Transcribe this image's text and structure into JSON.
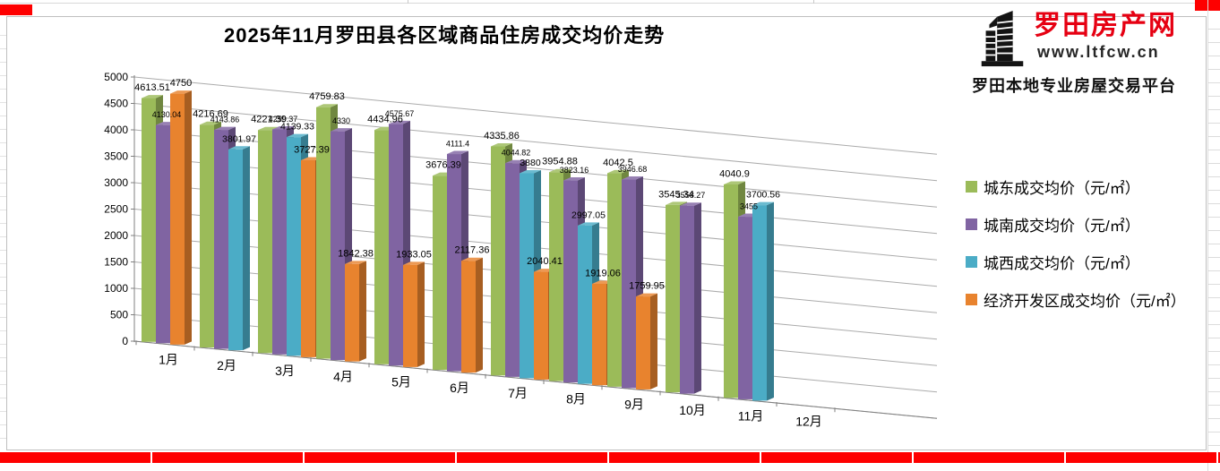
{
  "logo": {
    "site_name": "罗田房产网",
    "url": "www.ltfcw.cn",
    "tagline": "罗田本地专业房屋交易平台",
    "brand_color": "#e60012"
  },
  "sheet": {
    "accent_red": "#fe0000",
    "gridline_color": "#ababab",
    "axis_color": "#808080"
  },
  "chart_data": {
    "type": "bar",
    "subtype": "3d-clustered-column",
    "title": "2025年11月罗田县各区域商品住房成交均价走势",
    "categories": [
      "1月",
      "2月",
      "3月",
      "4月",
      "5月",
      "6月",
      "7月",
      "8月",
      "9月",
      "10月",
      "11月",
      "12月"
    ],
    "series": [
      {
        "name": "城东成交均价（元/㎡）",
        "color": "#9bbb59",
        "values": [
          4613.51,
          4216.69,
          4221.39,
          4759.83,
          4434.96,
          3676.39,
          4335.86,
          3954.88,
          4042.5,
          3545.34,
          4040.9,
          null
        ]
      },
      {
        "name": "城南成交均价（元/㎡）",
        "color": "#8064a2",
        "values": [
          4130.04,
          4143.86,
          4259.37,
          4330,
          4575.67,
          4111.4,
          4044.82,
          3823.16,
          3946.68,
          3558.27,
          3455,
          null
        ]
      },
      {
        "name": "城西成交均价（元/㎡）",
        "color": "#4bacc6",
        "values": [
          null,
          3801.97,
          4139.33,
          null,
          null,
          null,
          3880,
          2997.05,
          null,
          null,
          3700.56,
          null
        ]
      },
      {
        "name": "经济开发区成交均价（元/㎡）",
        "color": "#e8832e",
        "values": [
          4750,
          null,
          3727.39,
          1842.38,
          1933.05,
          2117.36,
          2040.41,
          1919.06,
          1759.95,
          null,
          null,
          null
        ]
      }
    ],
    "ylim": [
      0,
      5000
    ],
    "ytick_step": 500,
    "ytick_labels": [
      "0",
      "500",
      "1000",
      "1500",
      "2000",
      "2500",
      "3000",
      "3500",
      "4000",
      "4500",
      "5000"
    ],
    "grid": true,
    "legend_position": "right",
    "value_labels": true
  }
}
